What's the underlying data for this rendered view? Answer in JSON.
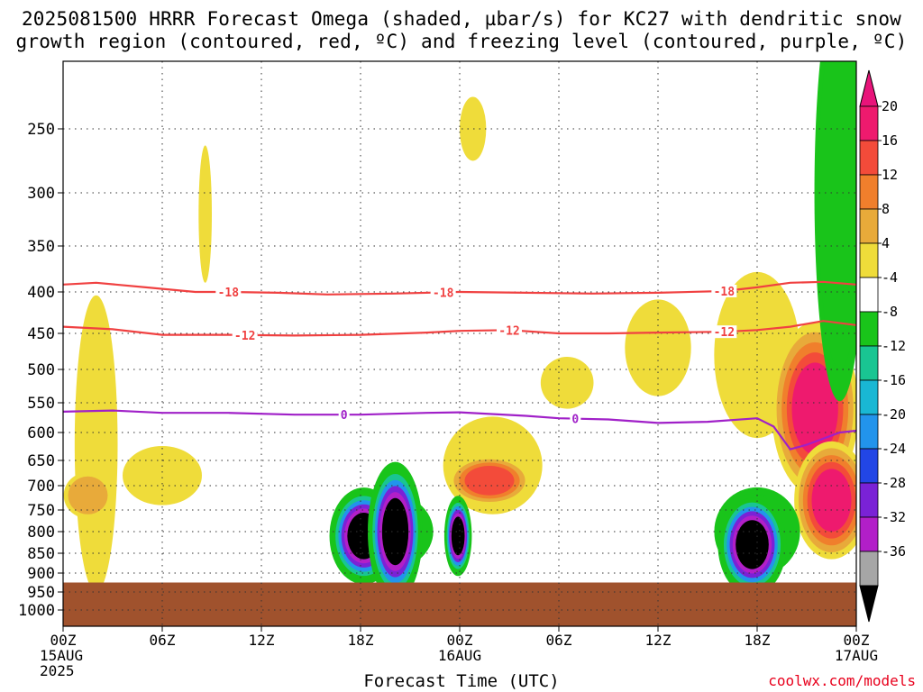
{
  "title_line1": "2025081500 HRRR Forecast Omega (shaded, µbar/s) for KC27 with dendritic snow",
  "title_line2": "growth region (contoured, red, ºC) and freezing level (contoured, purple, ºC)",
  "credit": "coolwx.com/models",
  "chart_data": {
    "type": "heatmap",
    "xlabel": "Forecast Time (UTC)",
    "ylabel": "",
    "x_hours_range": [
      0,
      48
    ],
    "y_pressure_range": [
      1050,
      200
    ],
    "y_ticks": [
      250,
      300,
      350,
      400,
      450,
      500,
      550,
      600,
      650,
      700,
      750,
      800,
      850,
      900,
      950,
      1000
    ],
    "x_ticks": [
      {
        "hour": 0,
        "lines": [
          "00Z",
          "15AUG",
          "2025"
        ]
      },
      {
        "hour": 6,
        "lines": [
          "06Z"
        ]
      },
      {
        "hour": 12,
        "lines": [
          "12Z"
        ]
      },
      {
        "hour": 18,
        "lines": [
          "18Z"
        ]
      },
      {
        "hour": 24,
        "lines": [
          "00Z",
          "16AUG"
        ]
      },
      {
        "hour": 30,
        "lines": [
          "06Z"
        ]
      },
      {
        "hour": 36,
        "lines": [
          "12Z"
        ]
      },
      {
        "hour": 42,
        "lines": [
          "18Z"
        ]
      },
      {
        "hour": 48,
        "lines": [
          "00Z",
          "17AUG"
        ]
      }
    ],
    "ground_level_hpa": 925,
    "colorbar": {
      "ticks": [
        "20",
        "16",
        "12",
        "8",
        "4",
        "-4",
        "-8",
        "-12",
        "-16",
        "-20",
        "-24",
        "-28",
        "-32",
        "-36"
      ],
      "colors": [
        "#ee1a6e",
        "#f34b3a",
        "#f07f2c",
        "#e8aa3a",
        "#efdc3a",
        "#ffffff",
        "#19c41a",
        "#19c592",
        "#19b7d4",
        "#2294ec",
        "#2246e6",
        "#7a22d6",
        "#b21fc8",
        "#a6a6a6",
        "#000000"
      ],
      "above_color": "#e8147a",
      "below_color": "#000000"
    },
    "contours": [
      {
        "name": "dgz-top",
        "label": "-18",
        "color": "#f04141",
        "label_hours": [
          10,
          23,
          40
        ],
        "points": [
          [
            0,
            392
          ],
          [
            2,
            390
          ],
          [
            5,
            395
          ],
          [
            8,
            400
          ],
          [
            10,
            400
          ],
          [
            13,
            401
          ],
          [
            16,
            403
          ],
          [
            20,
            402
          ],
          [
            24,
            400
          ],
          [
            28,
            401
          ],
          [
            32,
            402
          ],
          [
            36,
            401
          ],
          [
            40,
            399
          ],
          [
            42,
            395
          ],
          [
            44,
            390
          ],
          [
            46,
            389
          ],
          [
            48,
            392
          ]
        ]
      },
      {
        "name": "dgz-bottom",
        "label": "-12",
        "color": "#f04141",
        "label_hours": [
          11,
          27,
          40
        ],
        "points": [
          [
            0,
            442
          ],
          [
            3,
            445
          ],
          [
            6,
            452
          ],
          [
            10,
            452
          ],
          [
            14,
            453
          ],
          [
            18,
            452
          ],
          [
            22,
            449
          ],
          [
            24,
            447
          ],
          [
            27,
            446
          ],
          [
            30,
            450
          ],
          [
            33,
            450
          ],
          [
            36,
            449
          ],
          [
            40,
            448
          ],
          [
            42,
            446
          ],
          [
            44,
            442
          ],
          [
            46,
            435
          ],
          [
            48,
            440
          ]
        ]
      },
      {
        "name": "freezing-level",
        "label": "0",
        "color": "#a020c8",
        "label_hours": [
          17,
          31
        ],
        "points": [
          [
            0,
            565
          ],
          [
            3,
            563
          ],
          [
            6,
            567
          ],
          [
            10,
            567
          ],
          [
            14,
            570
          ],
          [
            18,
            570
          ],
          [
            22,
            567
          ],
          [
            24,
            566
          ],
          [
            28,
            572
          ],
          [
            30,
            576
          ],
          [
            33,
            578
          ],
          [
            36,
            584
          ],
          [
            39,
            582
          ],
          [
            42,
            576
          ],
          [
            43,
            590
          ],
          [
            44,
            630
          ],
          [
            45,
            622
          ],
          [
            47,
            600
          ],
          [
            48,
            597
          ]
        ]
      }
    ],
    "shaded_regions": [
      {
        "name": "pos4-a",
        "value": 4,
        "h": 2,
        "dh": 1.3,
        "p": 620,
        "dp": 330
      },
      {
        "name": "pos4-b",
        "value": 4,
        "h": 6,
        "dh": 2.4,
        "p": 680,
        "dp": 60
      },
      {
        "name": "pos4-c",
        "value": 4,
        "h": 8.6,
        "dh": 0.4,
        "p": 320,
        "dp": 70
      },
      {
        "name": "pos4-d",
        "value": 4,
        "h": 24.8,
        "dh": 0.8,
        "p": 250,
        "dp": 25
      },
      {
        "name": "pos4-e",
        "value": 4,
        "h": 26,
        "dh": 3,
        "p": 660,
        "dp": 100
      },
      {
        "name": "pos4-f",
        "value": 4,
        "h": 30.5,
        "dh": 1.6,
        "p": 520,
        "dp": 40
      },
      {
        "name": "pos4-g",
        "value": 4,
        "h": 36,
        "dh": 2,
        "p": 470,
        "dp": 70
      },
      {
        "name": "pos4-h",
        "value": 4,
        "h": 42,
        "dh": 2.6,
        "p": 480,
        "dp": 130
      },
      {
        "name": "pos8-a",
        "value": 8,
        "h": 1.5,
        "dh": 1.2,
        "p": 720,
        "dp": 40
      },
      {
        "name": "pos16-a",
        "value": 16,
        "h": 25.8,
        "dh": 1.5,
        "p": 690,
        "dp": 30
      },
      {
        "name": "pos20-a",
        "value": 20,
        "h": 45.5,
        "dh": 1.4,
        "p": 560,
        "dp": 80
      },
      {
        "name": "pos20-b",
        "value": 20,
        "h": 46.5,
        "dh": 1.2,
        "p": 730,
        "dp": 70
      },
      {
        "name": "neg4-a",
        "value": -4,
        "h": 19.5,
        "dh": 2.9,
        "p": 800,
        "dp": 95
      },
      {
        "name": "neg8-a",
        "value": -8,
        "h": 42,
        "dh": 2.2,
        "p": 800,
        "dp": 90
      },
      {
        "name": "neg8-b",
        "value": -8,
        "h": 47,
        "dh": 1.3,
        "p": 300,
        "dp": 200
      },
      {
        "name": "neg36-a",
        "value": -36,
        "h": 18.2,
        "dh": 1,
        "p": 810,
        "dp": 55
      },
      {
        "name": "neg36-b",
        "value": -36,
        "h": 20.1,
        "dh": 0.8,
        "p": 800,
        "dp": 80
      },
      {
        "name": "neg36-c",
        "value": -36,
        "h": 23.9,
        "dh": 0.4,
        "p": 810,
        "dp": 45
      },
      {
        "name": "neg36-d",
        "value": -36,
        "h": 41.7,
        "dh": 1,
        "p": 830,
        "dp": 60
      }
    ]
  }
}
